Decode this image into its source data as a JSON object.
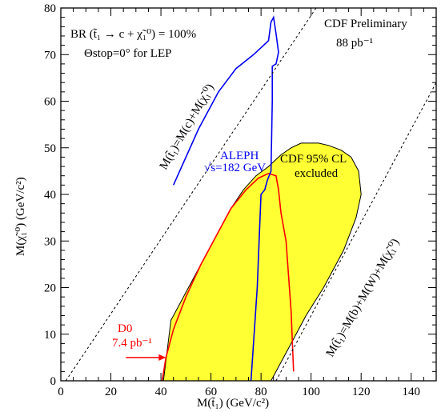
{
  "chart_data": {
    "type": "area",
    "xlabel": "M(t̃₁) (GeV/c²)",
    "ylabel": "M(χ̃₁⁰) (GeV/c²)",
    "xlim": [
      0,
      150
    ],
    "ylim": [
      0,
      80
    ],
    "xticks": [
      "0",
      "20",
      "40",
      "60",
      "80",
      "100",
      "120",
      "140"
    ],
    "yticks": [
      "0",
      "10",
      "20",
      "30",
      "40",
      "50",
      "60",
      "70",
      "80"
    ],
    "grid": false,
    "annotations": {
      "br": "BR (t̃₁ → c + χ̃₁⁰) = 100%",
      "theta": "Θstop=0° for LEP",
      "cdf_prelim": "CDF Preliminary",
      "lumi": "88 pb⁻¹",
      "cdf_excl_1": "CDF 95% CL",
      "cdf_excl_2": "excluded",
      "aleph_1": "ALEPH",
      "aleph_2": "√s=182 GeV",
      "d0_1": "D0",
      "d0_2": "7.4 pb⁻¹",
      "line1": "M(t̃₁)=M(c)+M(χ̃₁⁰)",
      "line2": "M(t̃₁)=M(b)+M(W)+M(χ̃₁⁰)"
    },
    "series": [
      {
        "style": "filled-region",
        "color": "#ffff33",
        "x": [
          41,
          44,
          48,
          53,
          58,
          63,
          68,
          73,
          78,
          83,
          88,
          92,
          96,
          99,
          103,
          107,
          112,
          116,
          119,
          120,
          118,
          113,
          105,
          98,
          93,
          89,
          86,
          84
        ],
        "y": [
          0,
          13,
          17,
          22,
          27,
          32,
          37,
          41,
          44,
          46,
          48.5,
          50,
          51,
          51,
          51,
          50.5,
          49.5,
          48,
          45,
          40,
          35,
          28,
          20,
          14,
          9,
          5,
          2,
          0
        ]
      },
      {
        "style": "line",
        "color": "#ff0000",
        "x": [
          40.5,
          42,
          45,
          50,
          56,
          62,
          68,
          74,
          79,
          83,
          86,
          87,
          88,
          90,
          92,
          93
        ],
        "y": [
          0,
          5,
          11,
          18,
          25,
          31,
          37,
          41,
          43.5,
          44.5,
          44,
          41,
          36,
          30,
          15,
          2
        ]
      },
      {
        "style": "line",
        "color": "#0000ee",
        "x": [
          45,
          55,
          63,
          70,
          77,
          83,
          84,
          85,
          86,
          87,
          86,
          84.5,
          84.5,
          84,
          82.5,
          81.5,
          80,
          78.5,
          76
        ],
        "y": [
          42,
          54,
          62,
          67,
          70,
          73,
          77,
          78,
          74.5,
          70.5,
          68,
          67.5,
          60,
          45,
          43,
          41,
          40,
          20,
          0
        ]
      }
    ],
    "reference_lines": [
      {
        "style": "dashed",
        "x": [
          2,
          102
        ],
        "y": [
          0,
          80
        ]
      },
      {
        "style": "dashed",
        "x": [
          86,
          150
        ],
        "y": [
          0,
          64
        ]
      }
    ],
    "d0_arrow": {
      "x": [
        26,
        42
      ],
      "y": [
        5,
        5
      ]
    }
  }
}
